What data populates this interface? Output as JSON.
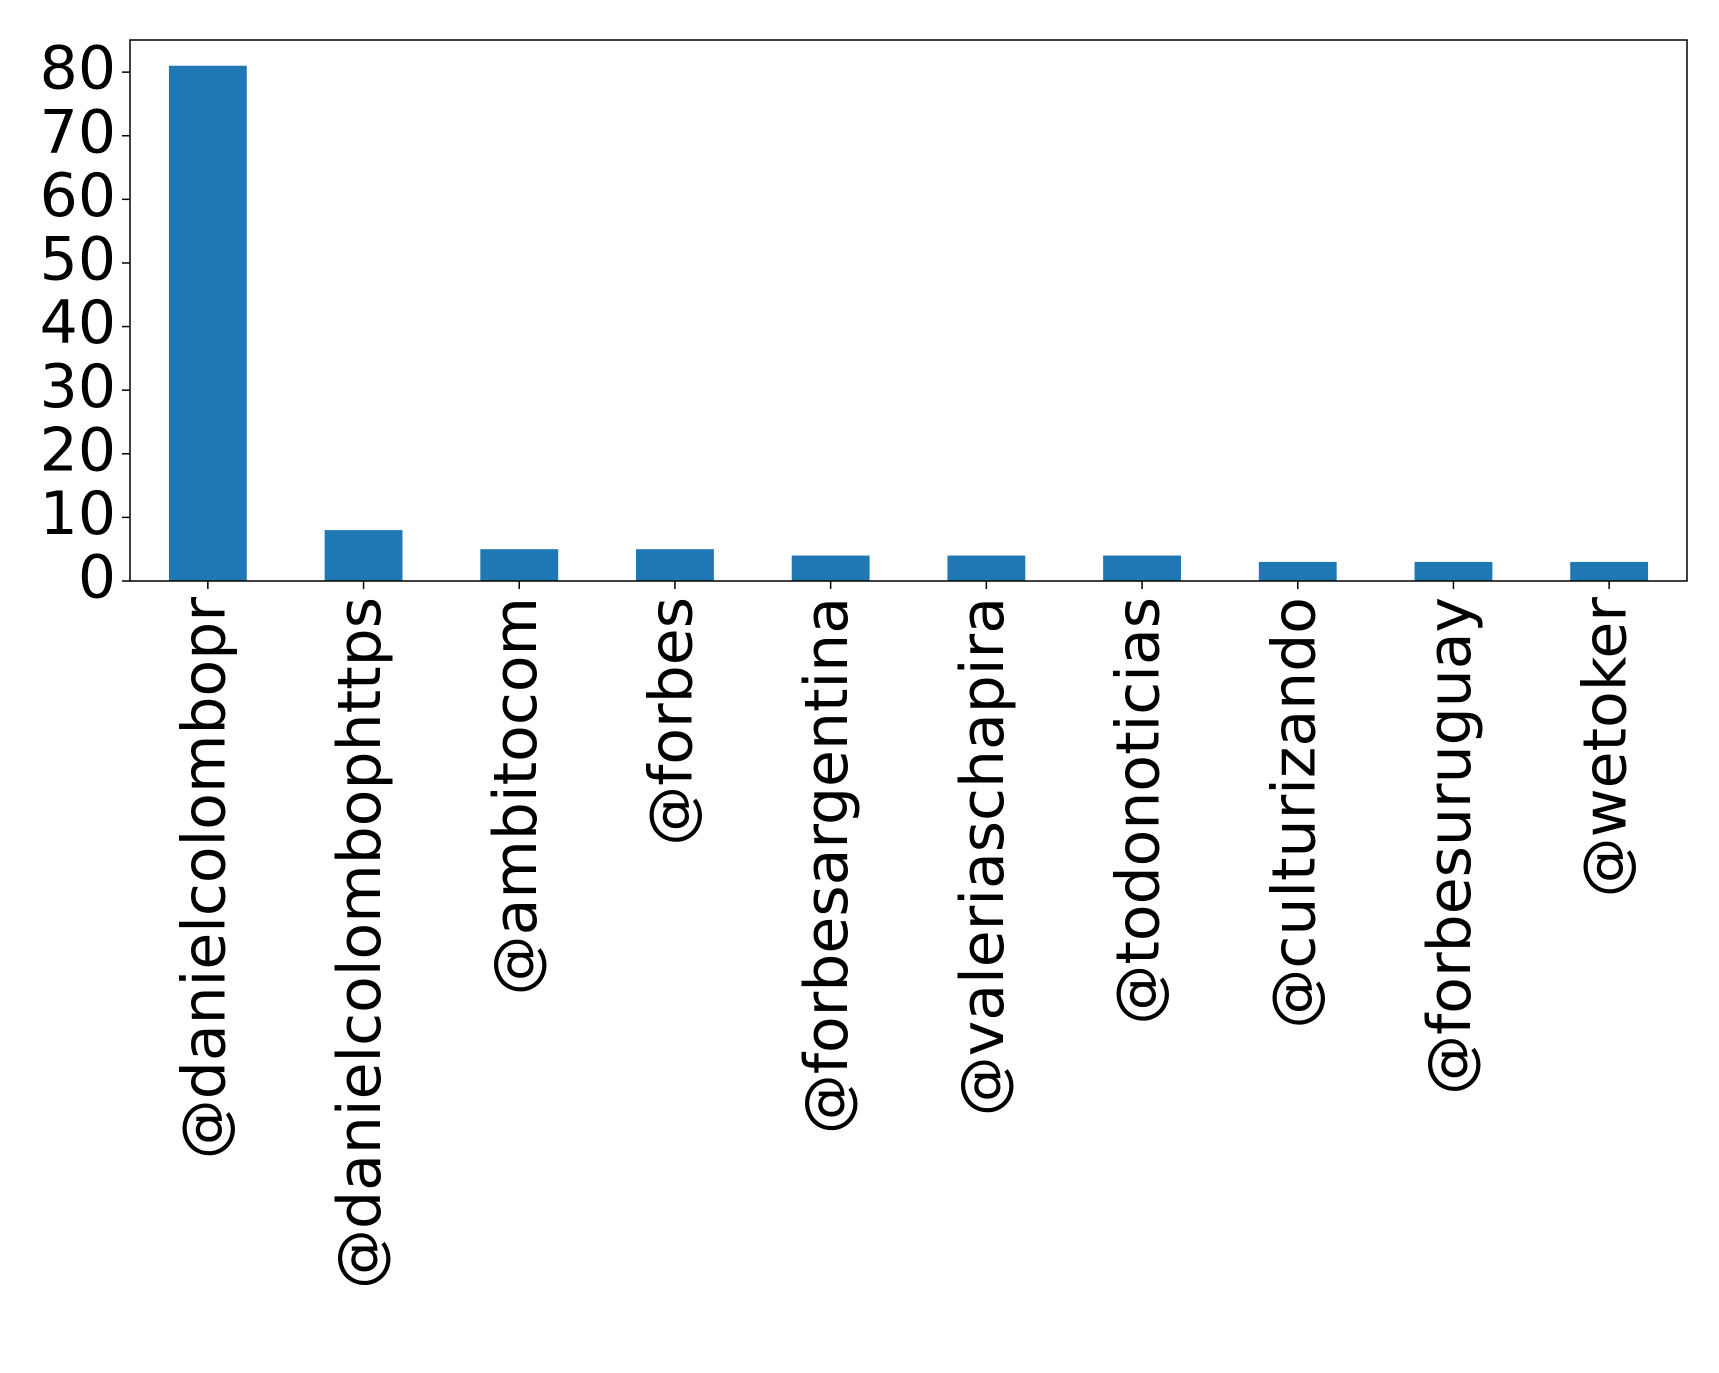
{
  "chart_data": {
    "type": "bar",
    "categories": [
      "@danielcolombopr",
      "@danielcolombophttps",
      "@ambitocom",
      "@forbes",
      "@forbesargentina",
      "@valeriaschapira",
      "@todonoticias",
      "@culturizando",
      "@forbesuruguay",
      "@wetoker"
    ],
    "values": [
      81,
      8,
      5,
      5,
      4,
      4,
      4,
      3,
      3,
      3
    ],
    "color": "#1f77b4",
    "ylim": [
      0,
      85.05
    ],
    "yticks": [
      0,
      10,
      20,
      30,
      40,
      50,
      60,
      70,
      80
    ],
    "grid": false
  }
}
